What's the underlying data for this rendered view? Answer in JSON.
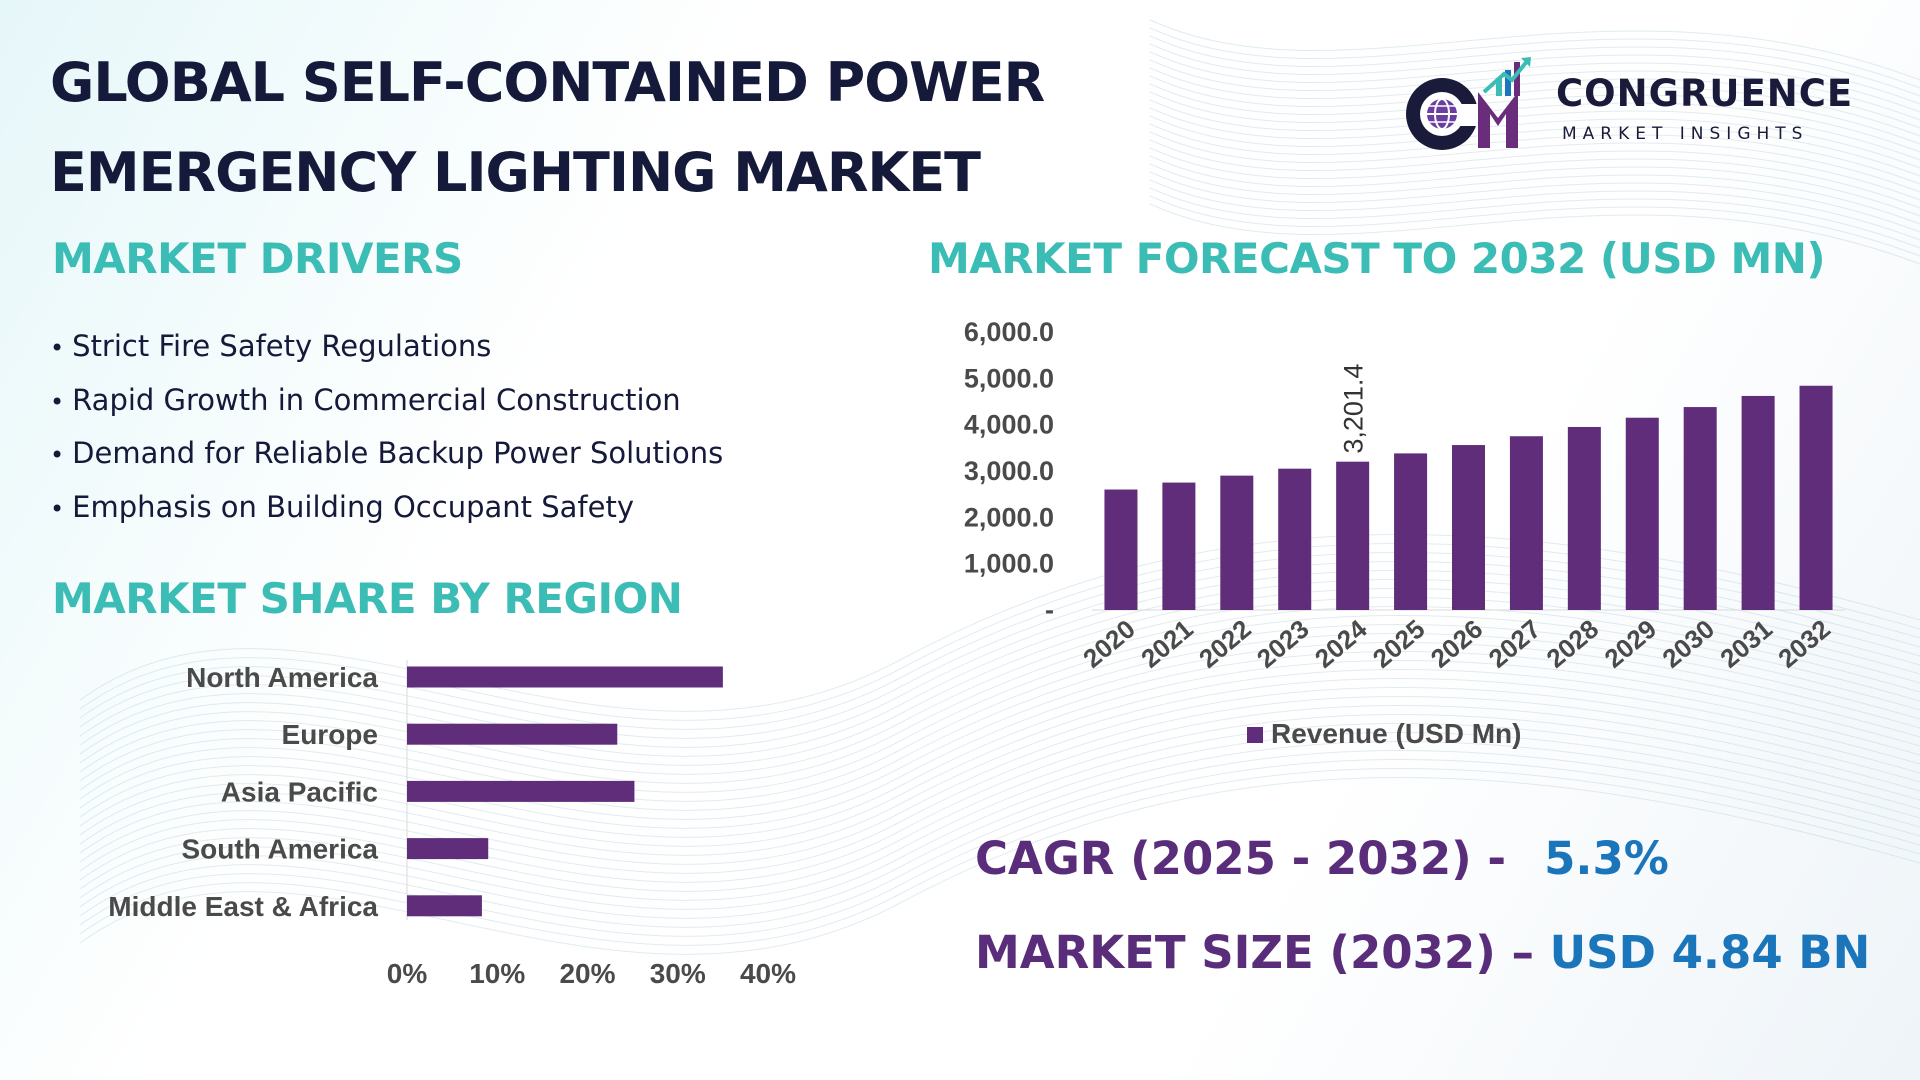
{
  "title": {
    "line1": "GLOBAL SELF-CONTAINED POWER",
    "line2": "EMERGENCY LIGHTING MARKET"
  },
  "logo": {
    "name": "CONGRUENCE",
    "subtitle": "MARKET INSIGHTS",
    "mark": "CM",
    "icon": "globe-bar-chart-logo-icon"
  },
  "drivers": {
    "title": "MARKET DRIVERS",
    "items": [
      "Strict Fire Safety Regulations",
      "Rapid Growth in Commercial Construction",
      "Demand for Reliable Backup Power Solutions",
      "Emphasis on Building Occupant Safety"
    ]
  },
  "region": {
    "title": "MARKET SHARE BY REGION"
  },
  "forecast": {
    "title": "MARKET FORECAST TO 2032 (USD MN)"
  },
  "colors": {
    "bar": "#5f2d7a",
    "teal_heading": "#3bbdb6",
    "purple_text": "#5a2d7a",
    "blue_value": "#1a75bb",
    "title_navy": "#15193a"
  },
  "stats": {
    "cagr_label": "CAGR (2025 - 2032) -",
    "cagr_value": "5.3%",
    "size_label": "MARKET SIZE (2032) –",
    "size_value": "USD 4.84 BN"
  },
  "chart_data": [
    {
      "type": "bar",
      "orientation": "vertical",
      "categories": [
        "2020",
        "2021",
        "2022",
        "2023",
        "2024",
        "2025",
        "2026",
        "2027",
        "2028",
        "2029",
        "2030",
        "2031",
        "2032"
      ],
      "series": [
        {
          "name": "Revenue (USD Mn)",
          "values": [
            2600,
            2750,
            2900,
            3050,
            3201.4,
            3380,
            3560,
            3750,
            3950,
            4150,
            4380,
            4620,
            4840
          ]
        }
      ],
      "labeled_points": [
        {
          "category": "2024",
          "label": "3,201.4"
        }
      ],
      "ylim": [
        0,
        6000
      ],
      "yticks": [
        0,
        1000,
        2000,
        3000,
        4000,
        5000,
        6000
      ],
      "ytick_labels": [
        "-",
        "1,000.0",
        "2,000.0",
        "3,000.0",
        "4,000.0",
        "5,000.0",
        "6,000.0"
      ],
      "legend": "bottom",
      "grid": false
    },
    {
      "type": "bar",
      "orientation": "horizontal",
      "categories": [
        "North America",
        "Europe",
        "Asia Pacific",
        "South America",
        "Middle East & Africa"
      ],
      "values": [
        35,
        23.3,
        25.2,
        9,
        8.3
      ],
      "xlim": [
        0,
        40
      ],
      "xtick_labels": [
        "0%",
        "10%",
        "20%",
        "30%",
        "40%"
      ],
      "grid": false
    }
  ]
}
